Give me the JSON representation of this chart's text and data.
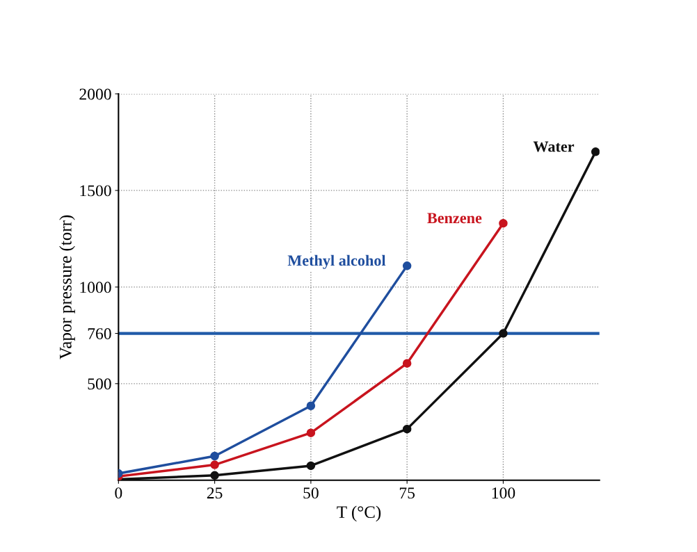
{
  "chart_data": {
    "type": "line",
    "xlabel": "T (°C)",
    "ylabel": "Vapor pressure (torr)",
    "xlim": [
      0,
      125
    ],
    "xticks": [
      0,
      25,
      50,
      75,
      100
    ],
    "ylim": [
      0,
      2000
    ],
    "yticks": [
      500,
      760,
      1000,
      1500,
      2000
    ],
    "grid": true,
    "marker": "circle",
    "line_style": "solid",
    "series": [
      {
        "name": "Water",
        "color": "#111111",
        "x": [
          0,
          25,
          50,
          75,
          100,
          124
        ],
        "values": [
          5,
          25,
          75,
          265,
          760,
          1700
        ]
      },
      {
        "name": "Benzene",
        "color": "#c8141e",
        "x": [
          0,
          25,
          50,
          75,
          100
        ],
        "values": [
          20,
          80,
          245,
          605,
          1330
        ]
      },
      {
        "name": "Methyl alcohol",
        "color": "#1f4e9e",
        "x": [
          0,
          25,
          50,
          75
        ],
        "values": [
          35,
          125,
          385,
          1110
        ]
      }
    ],
    "ref_lines": [
      {
        "axis": "y",
        "value": 760,
        "color": "#1f5aa8"
      }
    ]
  }
}
